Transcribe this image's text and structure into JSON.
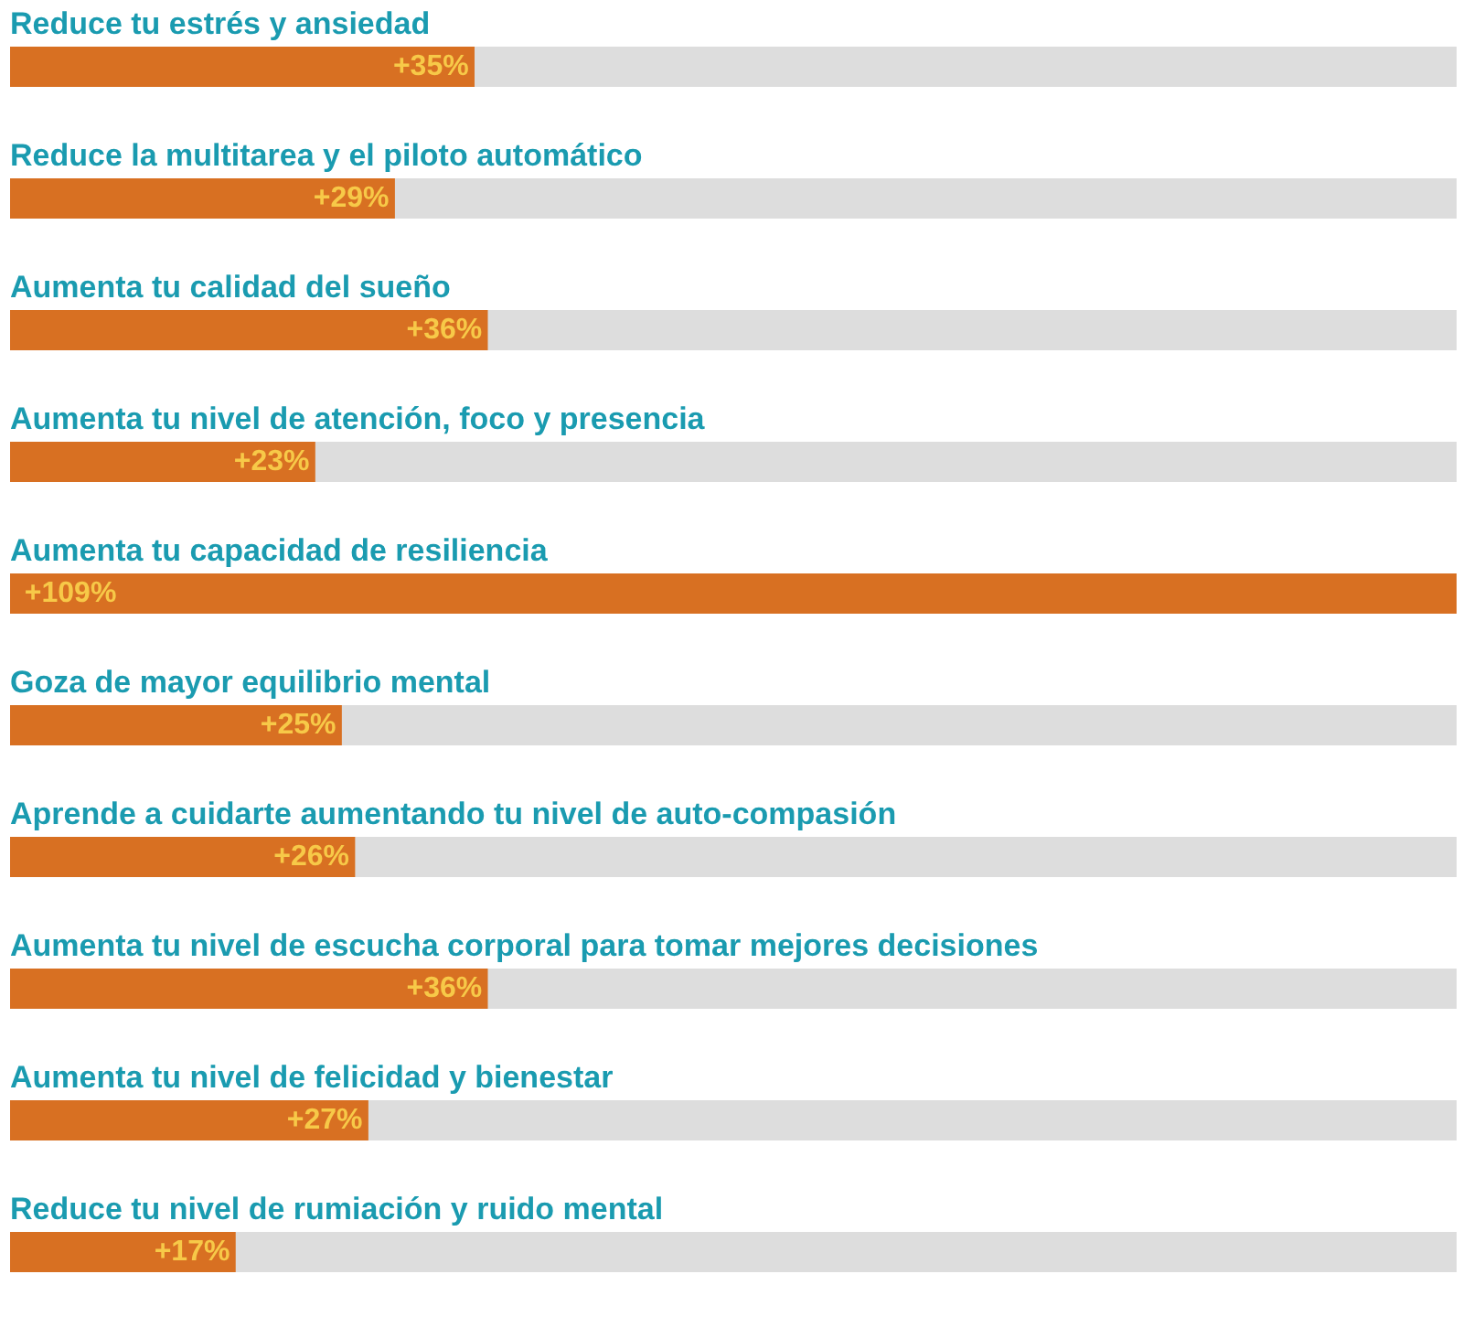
{
  "chart_data": {
    "type": "bar",
    "orientation": "horizontal",
    "categories": [
      "Reduce tu estrés y ansiedad",
      "Reduce la multitarea y el piloto automático",
      "Aumenta tu calidad del sueño",
      "Aumenta tu nivel de atención, foco y presencia",
      "Aumenta tu capacidad de resiliencia",
      "Goza de mayor equilibrio mental",
      "Aprende a cuidarte aumentando tu nivel de auto-compasión",
      "Aumenta tu nivel de escucha corporal para tomar mejores decisiones",
      "Aumenta tu nivel de felicidad y bienestar",
      "Reduce tu nivel de rumiación y ruido mental"
    ],
    "values": [
      35,
      29,
      36,
      23,
      109,
      25,
      26,
      36,
      27,
      17
    ],
    "value_labels": [
      "+35%",
      "+29%",
      "+36%",
      "+23%",
      "+109%",
      "+25%",
      "+26%",
      "+36%",
      "+27%",
      "+17%"
    ],
    "color": "#d87022",
    "xlim": [
      0,
      109
    ],
    "tick_labels": false,
    "grid": false
  }
}
